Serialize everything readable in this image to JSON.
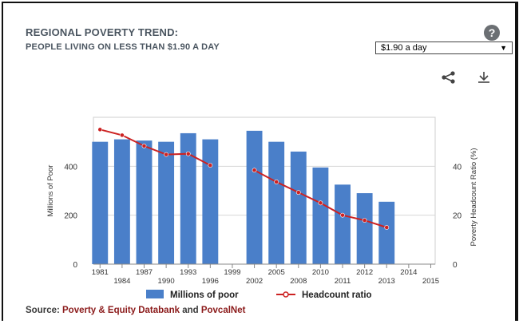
{
  "header": {
    "title": "REGIONAL POVERTY TREND:",
    "subtitle": "PEOPLE LIVING ON LESS THAN $1.90 A DAY",
    "help_glyph": "?"
  },
  "dropdown": {
    "selected": "$1.90 a day"
  },
  "icons": {
    "share": "share-icon",
    "download": "download-icon",
    "help": "help-icon"
  },
  "source": {
    "prefix": "Source: ",
    "link1": "Poverty & Equity Databank",
    "and": " and ",
    "link2": "PovcalNet"
  },
  "colors": {
    "bars": "#4a7fc9",
    "line": "#cc2222",
    "link": "#8b1a1a"
  },
  "chart_data": {
    "type": "bar",
    "xlabels_top": [
      "1981",
      "1987",
      "1993",
      "1999",
      "2005",
      "2010",
      "2012",
      "2014"
    ],
    "xlabels_bottom": [
      "1984",
      "1990",
      "1996",
      "2002",
      "2008",
      "2011",
      "2013",
      "2015"
    ],
    "x_all": [
      "1981",
      "1984",
      "1987",
      "1990",
      "1993",
      "1996",
      "1999",
      "2002",
      "2005",
      "2008",
      "2010",
      "2011",
      "2012",
      "2013",
      "2014",
      "2015"
    ],
    "ylabel": "Millions of Poor",
    "y2label": "Poverty Headcount Ratio (%)",
    "yticks": [
      0,
      200,
      400
    ],
    "y2ticks": [
      0,
      20,
      40
    ],
    "ylim": [
      0,
      600
    ],
    "y2lim": [
      0,
      60
    ],
    "grid": true,
    "series": [
      {
        "name": "Millions of poor",
        "type": "bar",
        "x": [
          "1981",
          "1984",
          "1987",
          "1990",
          "1993",
          "1996",
          "2002",
          "2005",
          "2008",
          "2010",
          "2011",
          "2012",
          "2013"
        ],
        "values": [
          500,
          510,
          505,
          500,
          535,
          510,
          545,
          500,
          460,
          395,
          325,
          290,
          255
        ]
      },
      {
        "name": "Headcount ratio",
        "type": "line",
        "segments": [
          {
            "x": [
              "1981",
              "1984",
              "1987",
              "1990",
              "1993",
              "1996"
            ],
            "values": [
              55.0,
              52.7,
              48.3,
              44.8,
              45.1,
              40.4
            ]
          },
          {
            "x": [
              "2002",
              "2005",
              "2008",
              "2010",
              "2011",
              "2012",
              "2013"
            ],
            "values": [
              38.4,
              33.6,
              29.3,
              25.0,
              20.0,
              17.9,
              15.0
            ]
          }
        ]
      }
    ],
    "legend_position": "bottom"
  }
}
